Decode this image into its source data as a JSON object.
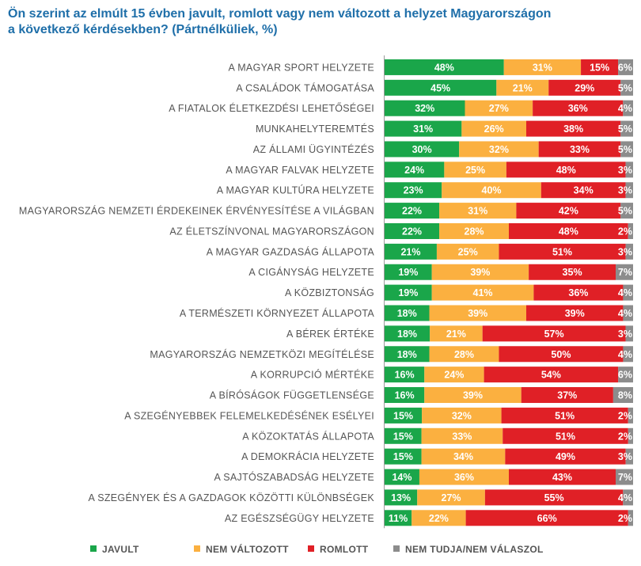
{
  "title_line1": "Ön szerint az elmúlt 15 évben javult, romlott vagy nem változott a helyzet Magyarországon",
  "title_line2": "a következő kérdésekben? (Pártnélküliek, %)",
  "chart_data": {
    "type": "bar",
    "orientation": "horizontal",
    "stacked": true,
    "title": "Ön szerint az elmúlt 15 évben javult, romlott vagy nem változott a helyzet Magyarországon a következő kérdésekben? (Pártnélküliek, %)",
    "legend_position": "bottom",
    "categories": [
      "A MAGYAR SPORT HELYZETE",
      "A CSALÁDOK TÁMOGATÁSA",
      "A FIATALOK ÉLETKEZDÉSI LEHETŐSÉGEI",
      "MUNKAHELYTEREMTÉS",
      "AZ ÁLLAMI ÜGYINTÉZÉS",
      "A MAGYAR FALVAK HELYZETE",
      "A MAGYAR KULTÚRA HELYZETE",
      "MAGYARORSZÁG NEMZETI ÉRDEKEINEK ÉRVÉNYESÍTÉSE A VILÁGBAN",
      "AZ ÉLETSZÍNVONAL MAGYARORSZÁGON",
      "A MAGYAR GAZDASÁG ÁLLAPOTA",
      "A CIGÁNYSÁG HELYZETE",
      "A KÖZBIZTONSÁG",
      "A TERMÉSZETI KÖRNYEZET ÁLLAPOTA",
      "A BÉREK ÉRTÉKE",
      "MAGYARORSZÁG NEMZETKÖZI MEGÍTÉLÉSE",
      "A KORRUPCIÓ MÉRTÉKE",
      "A BÍRÓSÁGOK FÜGGETLENSÉGE",
      "A SZEGÉNYEBBEK FELEMELKEDÉSÉNEK ESÉLYEI",
      "A KÖZOKTATÁS ÁLLAPOTA",
      "A DEMOKRÁCIA HELYZETE",
      "A SAJTÓSZABADSÁG HELYZETE",
      "A SZEGÉNYEK ÉS A GAZDAGOK KÖZÖTTI KÜLÖNBSÉGEK",
      "AZ EGÉSZSÉGÜGY HELYZETE"
    ],
    "series": [
      {
        "name": "JAVULT",
        "color": "#1aa64a",
        "values": [
          48,
          45,
          32,
          31,
          30,
          24,
          23,
          22,
          22,
          21,
          19,
          19,
          18,
          18,
          18,
          16,
          16,
          15,
          15,
          15,
          14,
          13,
          11
        ]
      },
      {
        "name": "NEM VÁLTOZOTT",
        "color": "#fbb040",
        "values": [
          31,
          21,
          27,
          26,
          32,
          25,
          40,
          31,
          28,
          25,
          39,
          41,
          39,
          21,
          28,
          24,
          39,
          32,
          33,
          34,
          36,
          27,
          22
        ]
      },
      {
        "name": "ROMLOTT",
        "color": "#e02026",
        "values": [
          15,
          29,
          36,
          38,
          33,
          48,
          34,
          42,
          48,
          51,
          35,
          36,
          39,
          57,
          50,
          54,
          37,
          51,
          51,
          49,
          43,
          55,
          66
        ]
      },
      {
        "name": "NEM TUDJA/NEM VÁLASZOL",
        "color": "#8c8c8c",
        "values": [
          6,
          5,
          4,
          5,
          5,
          3,
          3,
          5,
          2,
          3,
          7,
          4,
          4,
          3,
          4,
          6,
          8,
          2,
          2,
          3,
          7,
          4,
          2
        ]
      }
    ],
    "value_suffix": "%",
    "xlim": [
      0,
      100
    ]
  }
}
